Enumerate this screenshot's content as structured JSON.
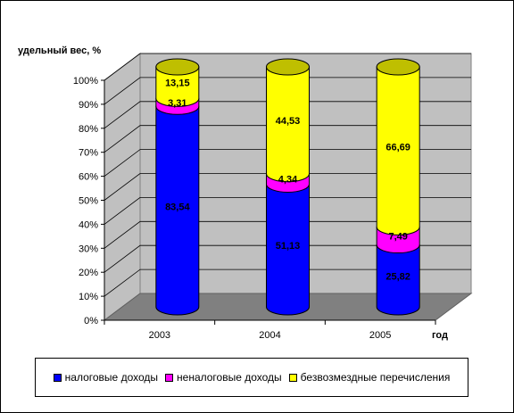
{
  "chart_data": {
    "type": "bar",
    "stacked": true,
    "percent_stacked": true,
    "style": "3d-cylinder",
    "ylabel": "удельный вес, %",
    "xlabel": "год",
    "categories": [
      "2003",
      "2004",
      "2005"
    ],
    "yticks": [
      "0%",
      "10%",
      "20%",
      "30%",
      "40%",
      "50%",
      "60%",
      "70%",
      "80%",
      "90%",
      "100%"
    ],
    "ylim": [
      0,
      100
    ],
    "grid": true,
    "legend_position": "bottom",
    "series": [
      {
        "name": "налоговые доходы",
        "color": "#0000FF",
        "values": [
          83.54,
          51.13,
          25.82
        ],
        "labels": [
          "83,54",
          "51,13",
          "25,82"
        ]
      },
      {
        "name": "неналоговые доходы",
        "color": "#FF00FF",
        "values": [
          3.31,
          4.34,
          7.49
        ],
        "labels": [
          "3,31",
          "4,34",
          "7,49"
        ]
      },
      {
        "name": "безвозмездные перечисления",
        "color": "#FFFF00",
        "values": [
          13.15,
          44.53,
          66.69
        ],
        "labels": [
          "13,15",
          "44,53",
          "66,69"
        ]
      }
    ]
  }
}
